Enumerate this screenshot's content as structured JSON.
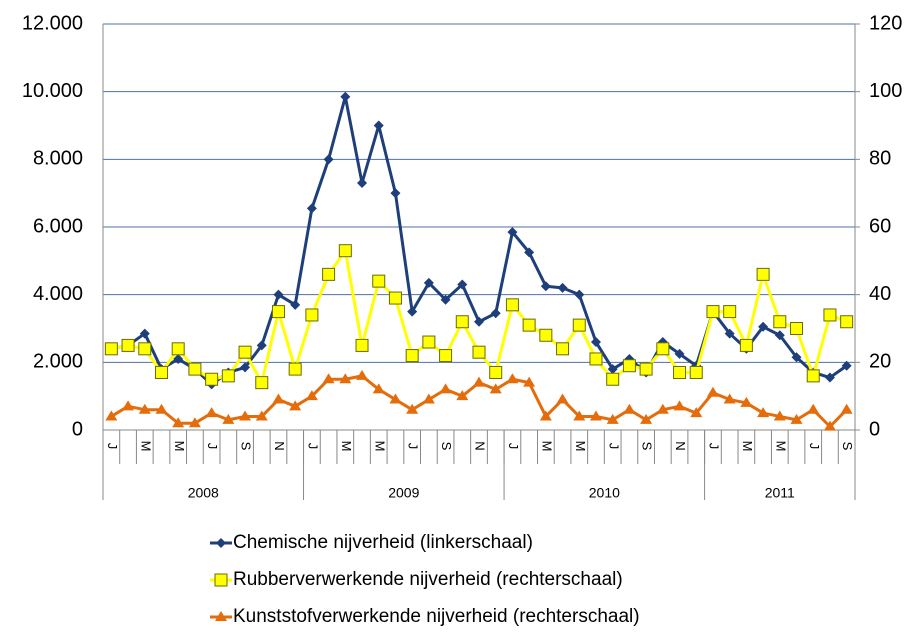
{
  "chart_data": {
    "type": "line",
    "categories": [
      "J",
      null,
      "M",
      null,
      "M",
      null,
      "J",
      null,
      "S",
      null,
      "N",
      null,
      "J",
      null,
      "M",
      null,
      "M",
      null,
      "J",
      null,
      "S",
      null,
      "N",
      null,
      "J",
      null,
      "M",
      null,
      "M",
      null,
      "J",
      null,
      "S",
      null,
      "N",
      null,
      "J",
      null,
      "M",
      null,
      "M",
      null,
      "J",
      null,
      "S"
    ],
    "groups": [
      {
        "name": "2008",
        "count": 12
      },
      {
        "name": "2009",
        "count": 12
      },
      {
        "name": "2010",
        "count": 12
      },
      {
        "name": "2011",
        "count": 9
      }
    ],
    "ylim": [
      0,
      12000
    ],
    "yticks": [
      0,
      {
        "value": 2000,
        "label": "2.000"
      },
      {
        "value": 4000,
        "label": "4.000"
      },
      {
        "value": 6000,
        "label": "6.000"
      },
      {
        "value": 8000,
        "label": "8.000"
      },
      {
        "value": 10000,
        "label": "10.000"
      },
      {
        "value": 12000,
        "label": "12.000"
      }
    ],
    "y2lim": [
      0,
      120
    ],
    "y2ticks": [
      0,
      20,
      40,
      60,
      80,
      100,
      120
    ],
    "grid": true,
    "legend": "bottom",
    "series": [
      {
        "name": "Chemische nijverheid (linkerschaal)",
        "color": "#1f3f7a",
        "marker": "diamond",
        "values": [
          2400,
          2500,
          2850,
          1800,
          2100,
          1800,
          1350,
          1700,
          1850,
          2500,
          4000,
          3700,
          6550,
          8000,
          9850,
          7300,
          9000,
          7000,
          3500,
          4350,
          3850,
          4300,
          3200,
          3450,
          5850,
          5250,
          4250,
          4200,
          4000,
          2600,
          1800,
          2100,
          1700,
          2600,
          2250,
          1900,
          3500,
          2850,
          2400,
          3050,
          2800,
          2150,
          1700,
          1550,
          1900
        ]
      },
      {
        "name": "Rubberverwerkende nijverheid (rechterschaal)",
        "color": "#ffff00",
        "marker": "square",
        "axis": "y2",
        "values": [
          24,
          25,
          24,
          17,
          24,
          18,
          15,
          16,
          23,
          14,
          35,
          18,
          34,
          46,
          53,
          25,
          44,
          39,
          22,
          26,
          22,
          32,
          23,
          17,
          37,
          31,
          28,
          24,
          31,
          21,
          15,
          19,
          18,
          24,
          17,
          17,
          35,
          35,
          25,
          46,
          32,
          30,
          16,
          34,
          32
        ]
      },
      {
        "name": "Kunststofverwerkende nijverheid (rechterschaal)",
        "color": "#e46c0a",
        "marker": "triangle",
        "axis": "y2",
        "values": [
          4,
          7,
          6,
          6,
          2,
          2,
          5,
          3,
          4,
          4,
          9,
          7,
          10,
          15,
          15,
          16,
          12,
          9,
          6,
          9,
          12,
          10,
          14,
          12,
          15,
          14,
          4,
          9,
          4,
          4,
          3,
          6,
          3,
          6,
          7,
          5,
          11,
          9,
          8,
          5,
          4,
          3,
          6,
          1,
          6
        ]
      }
    ]
  }
}
